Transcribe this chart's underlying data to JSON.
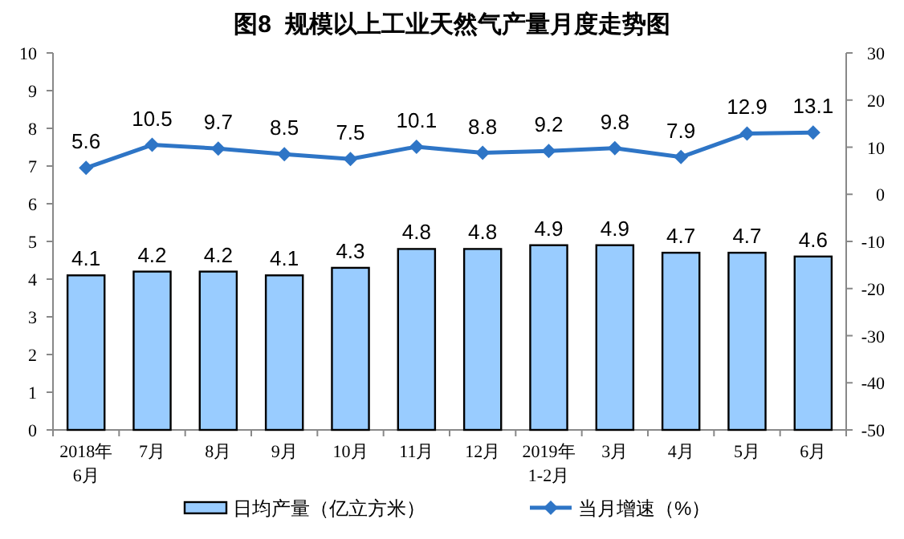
{
  "chart_data": {
    "type": "bar",
    "title": "图8  规模以上工业天然气产量月度走势图",
    "categories": [
      "2018年\n6月",
      "7月",
      "8月",
      "9月",
      "10月",
      "11月",
      "12月",
      "2019年\n1-2月",
      "3月",
      "4月",
      "5月",
      "6月"
    ],
    "series": [
      {
        "name": "日均产量（亿立方米）",
        "color": "#99ccff",
        "values": [
          4.1,
          4.2,
          4.2,
          4.1,
          4.3,
          4.8,
          4.8,
          4.9,
          4.9,
          4.7,
          4.7,
          4.6
        ]
      },
      {
        "name": "当月增速（%）",
        "type": "line",
        "axis": "y2",
        "marker": "diamond",
        "color": "#2e75c6",
        "values": [
          5.6,
          10.5,
          9.7,
          8.5,
          7.5,
          10.1,
          8.8,
          9.2,
          9.8,
          7.9,
          12.9,
          13.1
        ]
      }
    ],
    "ylim": [
      0,
      10
    ],
    "yticks": [
      0,
      1,
      2,
      3,
      4,
      5,
      6,
      7,
      8,
      9,
      10
    ],
    "y2lim": [
      -50,
      30
    ],
    "y2ticks": [
      -50,
      -40,
      -30,
      -20,
      -10,
      0,
      10,
      20,
      30
    ],
    "data_labels": true,
    "legend": "bottom",
    "grid": false
  }
}
